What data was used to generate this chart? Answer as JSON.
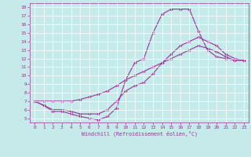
{
  "xlabel": "Windchill (Refroidissement éolien,°C)",
  "xlim": [
    -0.5,
    23.5
  ],
  "ylim": [
    4.5,
    18.5
  ],
  "xticks": [
    0,
    1,
    2,
    3,
    4,
    5,
    6,
    7,
    8,
    9,
    10,
    11,
    12,
    13,
    14,
    15,
    16,
    17,
    18,
    19,
    20,
    21,
    22,
    23
  ],
  "yticks": [
    5,
    6,
    7,
    8,
    9,
    10,
    11,
    12,
    13,
    14,
    15,
    16,
    17,
    18
  ],
  "background_color": "#c6eaea",
  "line_color": "#993399",
  "grid_color": "#ffffff",
  "line1_x": [
    0,
    1,
    2,
    3,
    4,
    5,
    6,
    7,
    8,
    9,
    10,
    11,
    12,
    13,
    14,
    15,
    16,
    17,
    18,
    19,
    20,
    21,
    22,
    23
  ],
  "line1_y": [
    7.0,
    6.5,
    5.8,
    5.8,
    5.5,
    5.2,
    5.0,
    4.8,
    5.2,
    6.2,
    9.5,
    11.5,
    12.0,
    15.0,
    17.2,
    17.8,
    17.8,
    17.8,
    15.2,
    13.0,
    12.2,
    12.0,
    11.8,
    11.8
  ],
  "line2_x": [
    0,
    1,
    2,
    3,
    4,
    5,
    6,
    7,
    8,
    9,
    10,
    11,
    12,
    13,
    14,
    15,
    16,
    17,
    18,
    19,
    20,
    21,
    22,
    23
  ],
  "line2_y": [
    7.0,
    6.5,
    6.0,
    6.0,
    5.8,
    5.5,
    5.5,
    5.5,
    6.0,
    7.0,
    8.2,
    8.8,
    9.2,
    10.2,
    11.5,
    12.5,
    13.5,
    14.0,
    14.5,
    14.0,
    13.5,
    12.5,
    12.0,
    11.8
  ],
  "line3_x": [
    0,
    1,
    2,
    3,
    4,
    5,
    6,
    7,
    8,
    9,
    10,
    11,
    12,
    13,
    14,
    15,
    16,
    17,
    18,
    19,
    20,
    21,
    22,
    23
  ],
  "line3_y": [
    7.0,
    7.0,
    7.0,
    7.0,
    7.0,
    7.2,
    7.5,
    7.8,
    8.2,
    8.8,
    9.5,
    10.0,
    10.5,
    11.0,
    11.5,
    12.0,
    12.5,
    13.0,
    13.5,
    13.2,
    12.8,
    12.2,
    11.8,
    11.8
  ],
  "tick_fontsize": 4.5,
  "xlabel_fontsize": 4.8,
  "linewidth": 0.8,
  "markersize": 1.8
}
